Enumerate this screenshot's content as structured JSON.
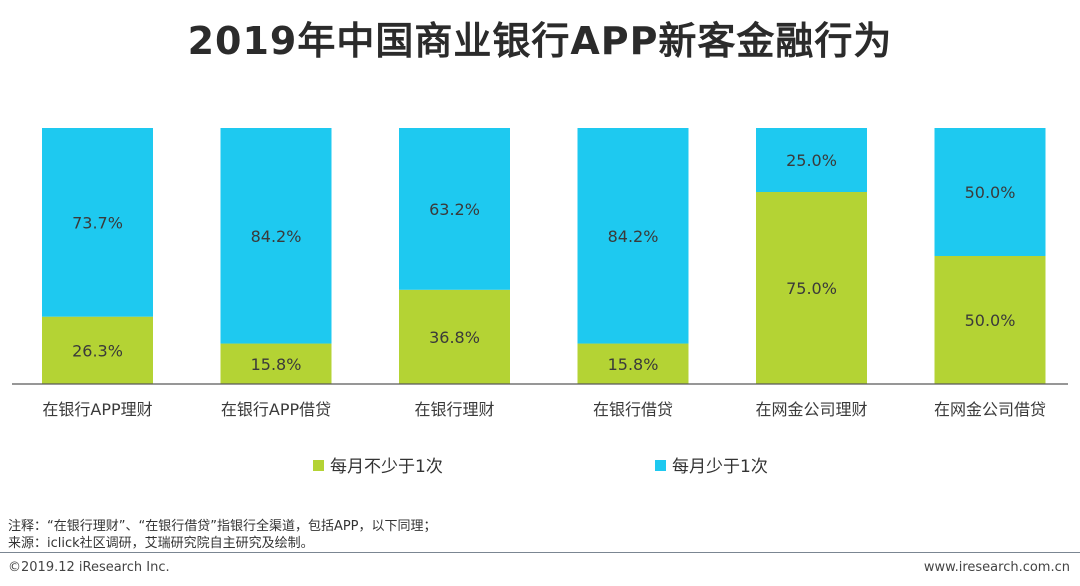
{
  "title": "2019年中国商业银行APP新客金融行为",
  "chart_data": {
    "type": "bar",
    "stacked": true,
    "percent_stacked": true,
    "categories": [
      "在银行APP理财",
      "在银行APP借贷",
      "在银行理财",
      "在银行借贷",
      "在网金公司理财",
      "在网金公司借贷"
    ],
    "series": [
      {
        "name": "每月不少于1次",
        "color": "#b4d334",
        "values": [
          26.3,
          15.8,
          36.8,
          15.8,
          75.0,
          50.0
        ],
        "labels": [
          "26.3%",
          "15.8%",
          "36.8%",
          "15.8%",
          "75.0%",
          "50.0%"
        ]
      },
      {
        "name": "每月少于1次",
        "color": "#1ec9f0",
        "values": [
          73.7,
          84.2,
          63.2,
          84.2,
          25.0,
          50.0
        ],
        "labels": [
          "73.7%",
          "84.2%",
          "63.2%",
          "84.2%",
          "25.0%",
          "50.0%"
        ]
      }
    ],
    "ylim": [
      0,
      100
    ],
    "xlabel": "",
    "ylabel": "",
    "legend": "bottom"
  },
  "legend": {
    "low_freq": "每月不少于1次",
    "high_freq": "每月少于1次"
  },
  "notes": {
    "note": "注释：“在银行理财”、“在银行借贷”指银行全渠道，包括APP，以下同理；",
    "source": "来源：iclick社区调研，艾瑞研究院自主研究及绘制。"
  },
  "footer": {
    "copyright": "©2019.12 iResearch Inc.",
    "website": "www.iresearch.com.cn"
  }
}
